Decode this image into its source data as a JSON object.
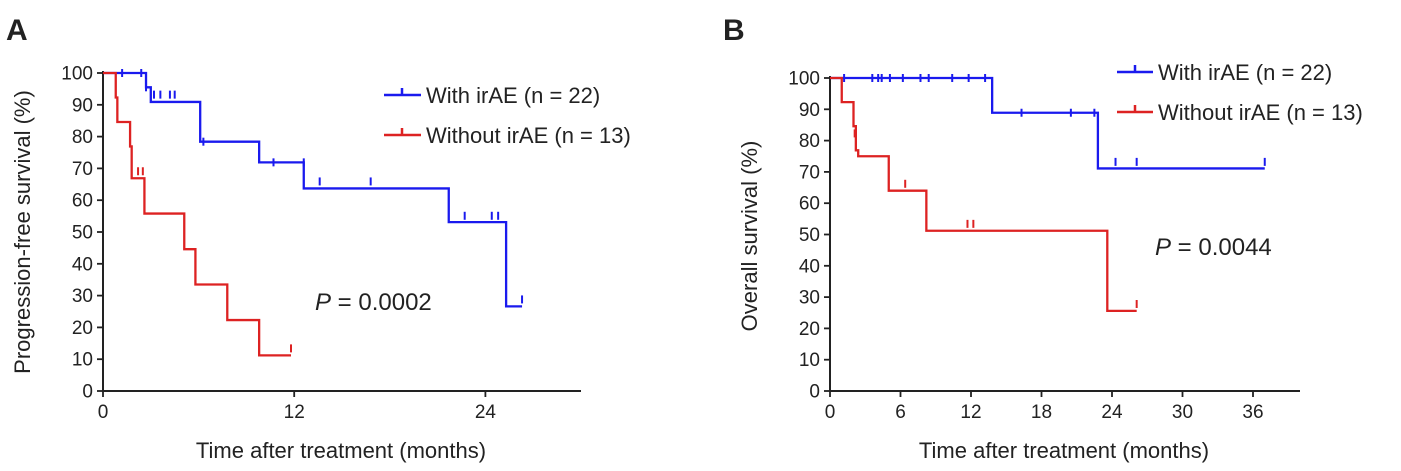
{
  "colors": {
    "with": "#1a1aee",
    "without": "#dd2222",
    "axis": "#222222"
  },
  "chart_data": [
    {
      "type": "line",
      "panel": "A",
      "xlabel": "Time after treatment (months)",
      "ylabel": "Progression-free survival (%)",
      "xlim": [
        0,
        30
      ],
      "ylim": [
        0,
        100
      ],
      "xticks": [
        0,
        12,
        24
      ],
      "yticks": [
        0,
        10,
        20,
        30,
        40,
        50,
        60,
        70,
        80,
        90,
        100
      ],
      "xtick_labels": [
        "0",
        "12",
        "24"
      ],
      "ytick_labels": [
        "0",
        "10",
        "20",
        "30",
        "40",
        "50",
        "60",
        "70",
        "80",
        "90",
        "100"
      ],
      "legend_position": "top-right",
      "annotation": {
        "p_label": "P",
        "p_value": " = 0.0002"
      },
      "series": [
        {
          "name": "With irAE (n = 22)",
          "color_key": "with",
          "steps": [
            [
              0,
              100
            ],
            [
              2.7,
              95.5
            ],
            [
              3,
              90.9
            ],
            [
              6.1,
              78.4
            ],
            [
              9.8,
              71.9
            ],
            [
              12.6,
              63.7
            ],
            [
              21.7,
              53.1
            ],
            [
              25.3,
              26.6
            ],
            [
              26.3,
              26.6
            ]
          ],
          "censors": [
            [
              1.2,
              100
            ],
            [
              2.4,
              100
            ],
            [
              2.7,
              95.5
            ],
            [
              3.2,
              93.2
            ],
            [
              3.6,
              93.2
            ],
            [
              4.2,
              93.2
            ],
            [
              4.5,
              93.2
            ],
            [
              6.3,
              78.4
            ],
            [
              10.7,
              71.9
            ],
            [
              12.6,
              71.9
            ],
            [
              13.6,
              65.9
            ],
            [
              16.8,
              65.9
            ],
            [
              22.7,
              55.1
            ],
            [
              24.4,
              55.1
            ],
            [
              24.8,
              55.1
            ],
            [
              26.3,
              28.8
            ]
          ]
        },
        {
          "name": "Without irAE (n = 13)",
          "color_key": "without",
          "steps": [
            [
              0,
              100
            ],
            [
              0.8,
              92.3
            ],
            [
              0.9,
              84.6
            ],
            [
              1.7,
              76.9
            ],
            [
              1.8,
              66.9
            ],
            [
              2.6,
              55.8
            ],
            [
              5.1,
              44.6
            ],
            [
              5.8,
              33.5
            ],
            [
              7.8,
              22.3
            ],
            [
              9.8,
              11.2
            ],
            [
              11.8,
              11.2
            ]
          ],
          "censors": [
            [
              2.2,
              69.1
            ],
            [
              2.5,
              69.1
            ],
            [
              11.8,
              13.4
            ]
          ]
        }
      ]
    },
    {
      "type": "line",
      "panel": "B",
      "xlabel": "Time after treatment (months)",
      "ylabel": "Overall survival (%)",
      "xlim": [
        0,
        40
      ],
      "ylim": [
        0,
        100
      ],
      "xticks": [
        0,
        6,
        12,
        18,
        24,
        30,
        36
      ],
      "yticks": [
        0,
        10,
        20,
        30,
        40,
        50,
        60,
        70,
        80,
        90,
        100
      ],
      "xtick_labels": [
        "0",
        "6",
        "12",
        "18",
        "24",
        "30",
        "36"
      ],
      "ytick_labels": [
        "0",
        "10",
        "20",
        "30",
        "40",
        "50",
        "60",
        "70",
        "80",
        "90",
        "100"
      ],
      "legend_position": "top-right",
      "annotation": {
        "p_label": "P",
        "p_value": " = 0.0044"
      },
      "series": [
        {
          "name": "With irAE (n = 22)",
          "color_key": "with",
          "steps": [
            [
              0,
              100
            ],
            [
              13.8,
              88.9
            ],
            [
              22.8,
              71.1
            ],
            [
              37,
              71.1
            ]
          ],
          "censors": [
            [
              1.2,
              100
            ],
            [
              3.6,
              100
            ],
            [
              4.1,
              100
            ],
            [
              4.4,
              100
            ],
            [
              5.1,
              100
            ],
            [
              6.2,
              100
            ],
            [
              7.7,
              100
            ],
            [
              8.4,
              100
            ],
            [
              10.4,
              100
            ],
            [
              11.8,
              100
            ],
            [
              13.2,
              100
            ],
            [
              16.3,
              88.9
            ],
            [
              20.5,
              88.9
            ],
            [
              22.5,
              88.9
            ],
            [
              24.3,
              73.2
            ],
            [
              26.1,
              73.2
            ],
            [
              37,
              73.2
            ]
          ]
        },
        {
          "name": "Without irAE (n = 13)",
          "color_key": "without",
          "steps": [
            [
              0,
              100
            ],
            [
              1,
              92.3
            ],
            [
              2,
              84.6
            ],
            [
              2.2,
              76.9
            ],
            [
              2.4,
              75
            ],
            [
              5,
              64
            ],
            [
              8.2,
              51.2
            ],
            [
              23.6,
              25.6
            ],
            [
              26.1,
              25.6
            ]
          ],
          "censors": [
            [
              2.1,
              82.3
            ],
            [
              6.4,
              66.2
            ],
            [
              11.7,
              53.4
            ],
            [
              12.2,
              53.4
            ],
            [
              26.1,
              27.8
            ]
          ]
        }
      ]
    }
  ]
}
